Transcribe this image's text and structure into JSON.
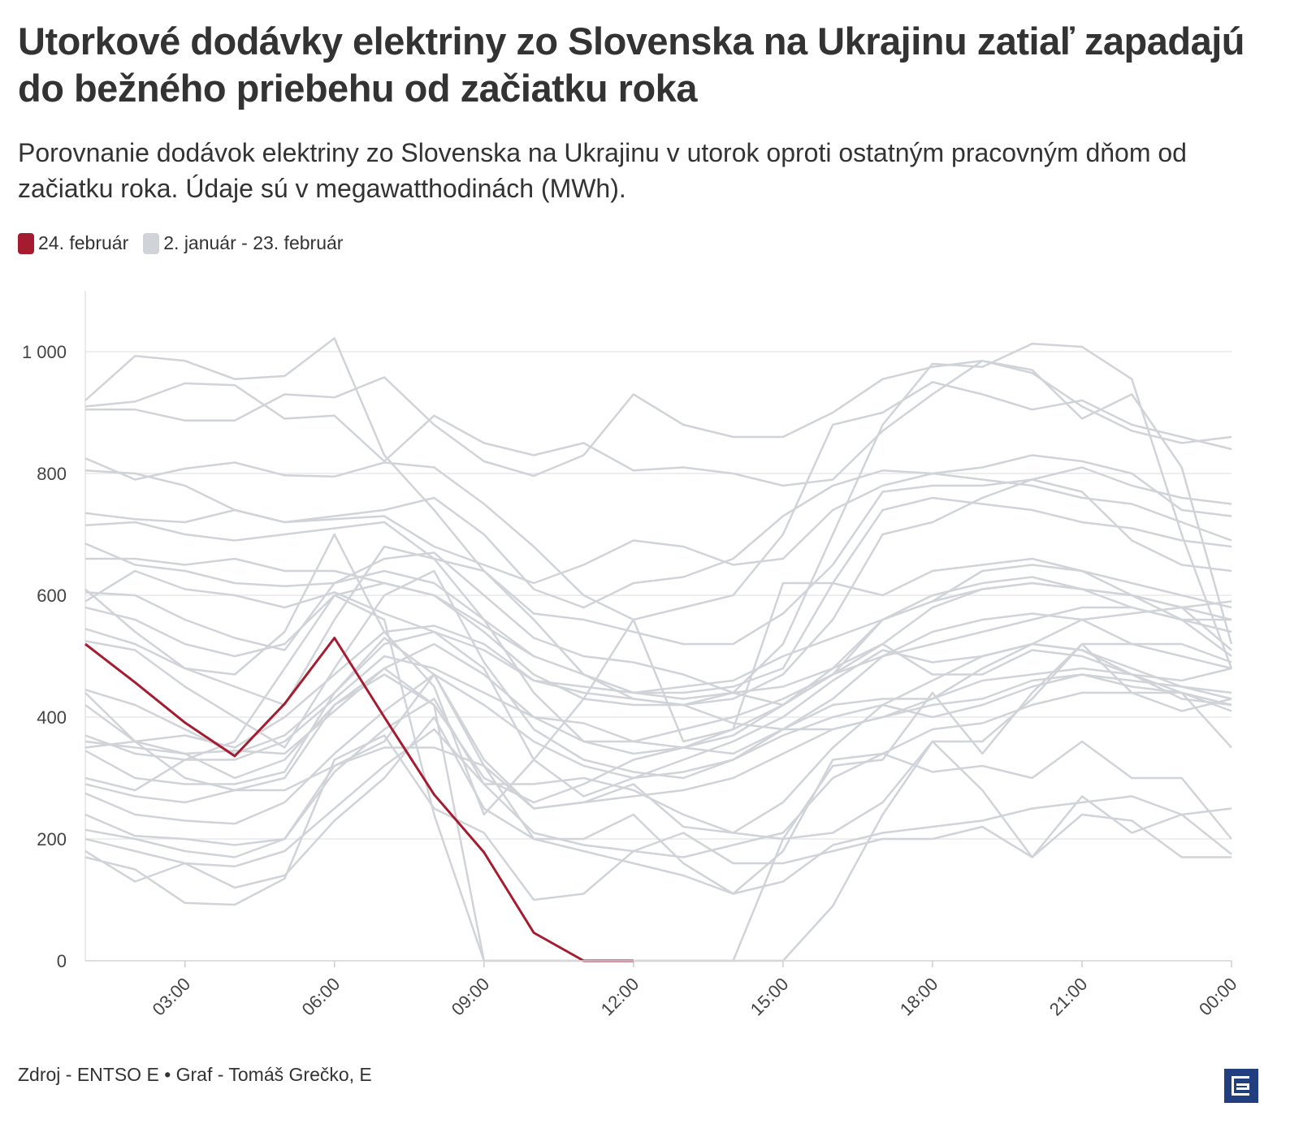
{
  "title": "Utorkové dodávky elektriny zo Slovenska na Ukrajinu zatiaľ zapadajú do bežného priebehu od začiatku roka",
  "subtitle": "Porovnanie dodávok elektriny zo Slovenska na Ukrajinu v utorok oproti ostatným pracovným dňom od začiatku roka. Údaje sú v megawatthodinách (MWh).",
  "footer": "Zdroj - ENTSO E • Graf - Tomáš Grečko, E",
  "logo_text": "E",
  "chart_data": {
    "type": "line",
    "title": "Utorkové dodávky elektriny zo Slovenska na Ukrajinu zatiaľ zapadajú do bežného priebehu od začiatku roka",
    "xlabel": "",
    "ylabel": "MWh",
    "ylim": [
      0,
      1100
    ],
    "yticks": [
      0,
      200,
      400,
      600,
      800,
      1000
    ],
    "ytick_labels": [
      "0",
      "200",
      "400",
      "600",
      "800",
      "1 000"
    ],
    "x_hours": [
      1,
      2,
      3,
      4,
      5,
      6,
      7,
      8,
      9,
      10,
      11,
      12,
      13,
      14,
      15,
      16,
      17,
      18,
      19,
      20,
      21,
      22,
      23,
      24
    ],
    "xticks": [
      3,
      6,
      9,
      12,
      15,
      18,
      21,
      24
    ],
    "xtick_labels": [
      "03:00",
      "06:00",
      "09:00",
      "12:00",
      "15:00",
      "18:00",
      "21:00",
      "00:00"
    ],
    "legend": [
      {
        "label": "24. február",
        "color": "#a51c30"
      },
      {
        "label": "2. január - 23. február",
        "color": "#d0d3d8"
      }
    ],
    "legend_position": "top-left",
    "highlight": {
      "name": "24. február",
      "color": "#a51c30",
      "values": [
        520,
        457,
        391,
        336,
        422,
        530,
        400,
        273,
        178,
        46,
        0,
        0
      ]
    },
    "background_color": "#d0d3d8",
    "background_series": [
      [
        920,
        993,
        985,
        955,
        960,
        1022,
        830,
        740,
        640,
        560,
        470,
        430,
        420,
        440,
        520,
        700,
        880,
        980,
        975,
        1013,
        1008,
        955,
        700,
        480
      ],
      [
        905,
        905,
        887,
        887,
        930,
        925,
        958,
        880,
        820,
        796,
        830,
        930,
        880,
        860,
        860,
        900,
        955,
        975,
        985,
        970,
        890,
        930,
        810,
        520
      ],
      [
        910,
        918,
        948,
        945,
        890,
        895,
        820,
        895,
        850,
        830,
        850,
        805,
        810,
        800,
        780,
        790,
        870,
        930,
        985,
        965,
        910,
        870,
        850,
        860
      ],
      [
        825,
        790,
        808,
        818,
        797,
        795,
        818,
        810,
        750,
        680,
        600,
        560,
        580,
        600,
        700,
        880,
        900,
        950,
        930,
        905,
        920,
        880,
        860,
        840
      ],
      [
        805,
        800,
        780,
        740,
        720,
        730,
        740,
        760,
        700,
        610,
        580,
        620,
        630,
        660,
        730,
        780,
        805,
        800,
        810,
        830,
        820,
        800,
        740,
        730
      ],
      [
        735,
        725,
        720,
        740,
        720,
        725,
        730,
        680,
        650,
        620,
        650,
        690,
        680,
        650,
        660,
        740,
        780,
        800,
        790,
        780,
        760,
        750,
        720,
        690
      ],
      [
        715,
        720,
        700,
        690,
        700,
        710,
        720,
        660,
        640,
        570,
        560,
        540,
        520,
        520,
        570,
        650,
        770,
        780,
        780,
        790,
        770,
        690,
        650,
        640
      ],
      [
        685,
        650,
        640,
        620,
        615,
        620,
        640,
        620,
        560,
        500,
        470,
        440,
        440,
        450,
        480,
        620,
        740,
        760,
        750,
        740,
        720,
        710,
        690,
        680
      ],
      [
        660,
        660,
        650,
        660,
        640,
        640,
        620,
        600,
        540,
        470,
        430,
        420,
        420,
        430,
        470,
        560,
        700,
        720,
        760,
        790,
        810,
        780,
        760,
        750
      ],
      [
        605,
        600,
        560,
        530,
        510,
        620,
        660,
        670,
        600,
        530,
        500,
        490,
        470,
        440,
        420,
        470,
        560,
        590,
        640,
        650,
        640,
        620,
        600,
        580
      ],
      [
        590,
        640,
        610,
        600,
        580,
        605,
        570,
        540,
        510,
        460,
        450,
        440,
        430,
        440,
        450,
        480,
        520,
        580,
        610,
        620,
        610,
        600,
        580,
        560
      ],
      [
        545,
        520,
        480,
        450,
        420,
        560,
        680,
        660,
        560,
        440,
        360,
        340,
        350,
        370,
        420,
        480,
        560,
        600,
        620,
        630,
        610,
        580,
        560,
        540
      ],
      [
        525,
        510,
        450,
        400,
        350,
        480,
        600,
        640,
        490,
        380,
        330,
        310,
        300,
        330,
        380,
        430,
        500,
        540,
        560,
        570,
        560,
        520,
        500,
        480
      ],
      [
        445,
        420,
        380,
        340,
        370,
        440,
        520,
        540,
        480,
        330,
        270,
        300,
        330,
        360,
        400,
        460,
        510,
        490,
        500,
        520,
        510,
        480,
        450,
        430
      ],
      [
        420,
        360,
        340,
        300,
        330,
        420,
        480,
        520,
        470,
        400,
        360,
        360,
        380,
        400,
        430,
        470,
        520,
        470,
        470,
        510,
        500,
        470,
        440,
        420
      ],
      [
        370,
        340,
        330,
        330,
        360,
        430,
        500,
        480,
        440,
        400,
        390,
        360,
        350,
        340,
        380,
        420,
        430,
        430,
        460,
        470,
        480,
        470,
        430,
        420
      ],
      [
        350,
        360,
        370,
        350,
        400,
        470,
        540,
        550,
        520,
        460,
        440,
        430,
        420,
        390,
        380,
        380,
        400,
        420,
        430,
        460,
        470,
        450,
        440,
        410
      ],
      [
        345,
        300,
        290,
        290,
        310,
        440,
        530,
        470,
        420,
        360,
        320,
        300,
        310,
        330,
        370,
        400,
        420,
        460,
        500,
        520,
        510,
        470,
        460,
        480
      ],
      [
        290,
        270,
        260,
        280,
        300,
        420,
        470,
        420,
        300,
        260,
        290,
        330,
        350,
        380,
        420,
        470,
        500,
        520,
        540,
        560,
        580,
        580,
        560,
        560
      ],
      [
        275,
        240,
        230,
        225,
        260,
        340,
        410,
        470,
        330,
        250,
        260,
        270,
        280,
        300,
        340,
        380,
        400,
        430,
        480,
        520,
        560,
        570,
        580,
        590
      ],
      [
        240,
        205,
        200,
        190,
        200,
        320,
        360,
        470,
        320,
        250,
        260,
        290,
        220,
        210,
        260,
        350,
        420,
        400,
        420,
        450,
        470,
        460,
        450,
        440
      ],
      [
        215,
        200,
        180,
        170,
        200,
        310,
        380,
        430,
        290,
        290,
        300,
        280,
        240,
        210,
        200,
        210,
        260,
        360,
        360,
        430,
        520,
        520,
        520,
        490
      ],
      [
        200,
        180,
        160,
        155,
        180,
        250,
        320,
        380,
        290,
        210,
        190,
        180,
        170,
        190,
        210,
        300,
        340,
        380,
        390,
        420,
        440,
        440,
        410,
        430
      ],
      [
        180,
        130,
        160,
        120,
        140,
        230,
        300,
        400,
        250,
        200,
        180,
        160,
        140,
        110,
        130,
        190,
        210,
        220,
        230,
        250,
        260,
        270,
        240,
        250
      ],
      [
        170,
        150,
        95,
        92,
        135,
        330,
        370,
        250,
        210,
        100,
        110,
        180,
        210,
        160,
        160,
        180,
        200,
        200,
        220,
        170,
        270,
        210,
        240,
        175
      ],
      [
        440,
        360,
        300,
        280,
        280,
        320,
        350,
        350,
        320,
        200,
        200,
        240,
        160,
        110,
        180,
        330,
        340,
        310,
        320,
        300,
        360,
        300,
        300,
        200
      ],
      [
        610,
        540,
        480,
        470,
        540,
        700,
        540,
        450,
        240,
        330,
        430,
        560,
        360,
        380,
        620,
        620,
        600,
        640,
        650,
        660,
        640,
        600,
        560,
        500
      ],
      [
        580,
        560,
        520,
        500,
        520,
        600,
        620,
        600,
        550,
        500,
        470,
        440,
        450,
        460,
        500,
        530,
        560,
        590,
        610,
        620,
        610,
        600,
        580,
        510
      ],
      [
        360,
        350,
        340,
        345,
        340,
        410,
        480,
        420,
        0,
        0,
        0,
        0,
        0,
        0,
        0,
        90,
        240,
        360,
        280,
        170,
        240,
        230,
        170,
        170
      ],
      [
        300,
        280,
        330,
        360,
        480,
        600,
        560,
        240,
        0,
        0,
        0,
        0,
        0,
        0,
        200,
        320,
        330,
        440,
        340,
        440,
        520,
        440,
        440,
        350
      ]
    ]
  }
}
